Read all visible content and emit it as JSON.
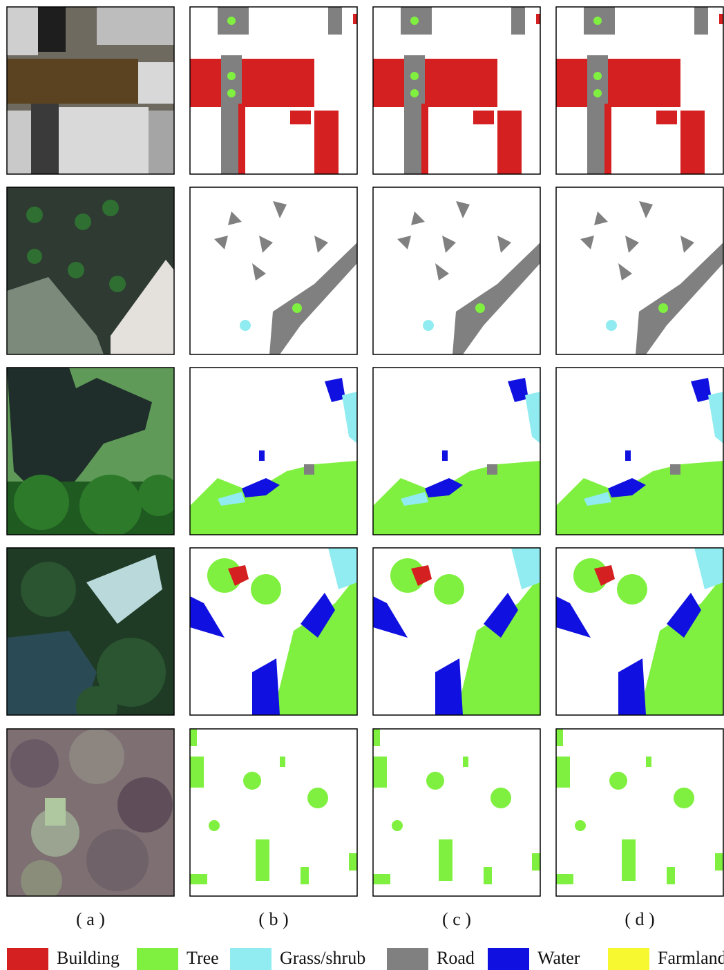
{
  "captions": [
    "( a )",
    "( b )",
    "( c )",
    "( d )"
  ],
  "legend": [
    {
      "name": "Building",
      "color": "#d42020"
    },
    {
      "name": "Tree",
      "color": "#80f040"
    },
    {
      "name": "Grass/shrub",
      "color": "#90ecf0"
    },
    {
      "name": "Road",
      "color": "#808080"
    },
    {
      "name": "Water",
      "color": "#1010e0"
    },
    {
      "name": "Farmland",
      "color": "#f8f830"
    }
  ]
}
